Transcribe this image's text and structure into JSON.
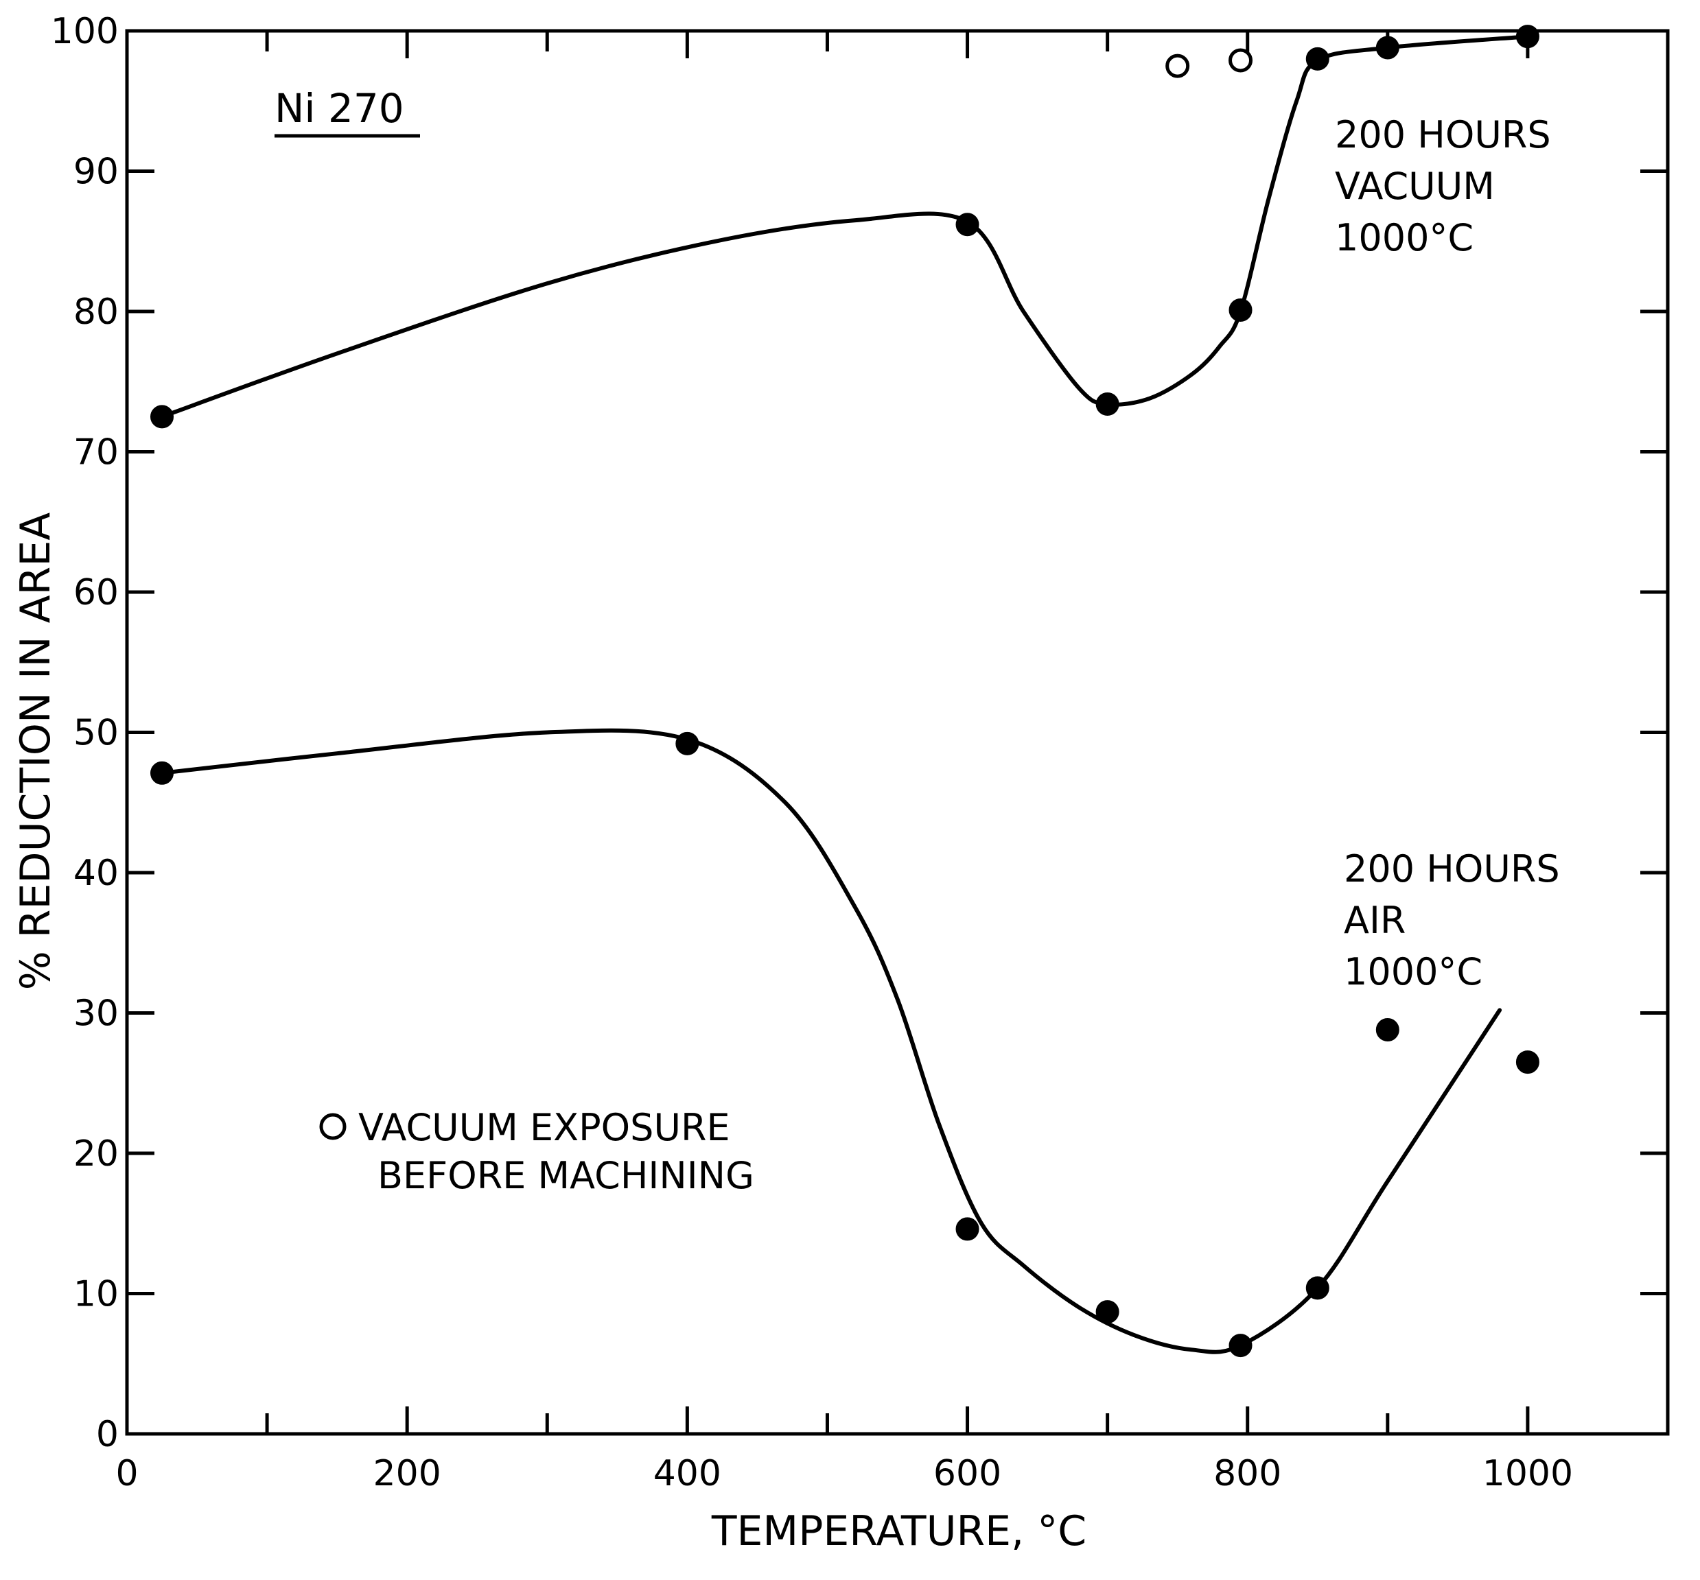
{
  "chart_data": {
    "type": "line",
    "title": "Ni 270",
    "xlabel": "TEMPERATURE, °C",
    "ylabel": "% REDUCTION IN AREA",
    "xlim": [
      0,
      1100
    ],
    "ylim": [
      0,
      100
    ],
    "x_ticks": [
      0,
      200,
      400,
      600,
      800,
      1000
    ],
    "y_ticks": [
      0,
      10,
      20,
      30,
      40,
      50,
      60,
      70,
      80,
      90,
      100
    ],
    "x_minor": [
      100,
      300,
      500,
      700,
      900
    ],
    "grid": false,
    "series": [
      {
        "name": "200 HOURS VACUUM 1000°C",
        "label_lines": [
          "200 HOURS",
          "VACUUM",
          "1000°C"
        ],
        "marker": "filled-circle",
        "points": [
          [
            25,
            72.5
          ],
          [
            600,
            86.2
          ],
          [
            700,
            73.4
          ],
          [
            795,
            80.1
          ],
          [
            850,
            98
          ],
          [
            900,
            98.8
          ],
          [
            1000,
            99.6
          ]
        ],
        "curve": [
          [
            25,
            72.5
          ],
          [
            150,
            77
          ],
          [
            300,
            82
          ],
          [
            420,
            85
          ],
          [
            520,
            86.5
          ],
          [
            600,
            86.4
          ],
          [
            640,
            80
          ],
          [
            680,
            74.5
          ],
          [
            700,
            73.4
          ],
          [
            730,
            73.8
          ],
          [
            760,
            75.5
          ],
          [
            780,
            77.5
          ],
          [
            795,
            80
          ],
          [
            815,
            88
          ],
          [
            835,
            95
          ],
          [
            850,
            97.9
          ],
          [
            900,
            98.8
          ],
          [
            1000,
            99.6
          ]
        ]
      },
      {
        "name": "200 HOURS AIR 1000°C",
        "label_lines": [
          "200 HOURS",
          "AIR",
          "1000°C"
        ],
        "marker": "filled-circle",
        "points": [
          [
            25,
            47.1
          ],
          [
            400,
            49.2
          ],
          [
            600,
            14.6
          ],
          [
            700,
            8.7
          ],
          [
            795,
            6.3
          ],
          [
            850,
            10.4
          ],
          [
            900,
            28.8
          ],
          [
            1000,
            26.5
          ]
        ],
        "curve": [
          [
            25,
            47.1
          ],
          [
            150,
            48.5
          ],
          [
            300,
            50
          ],
          [
            400,
            49.5
          ],
          [
            470,
            45
          ],
          [
            520,
            37.5
          ],
          [
            550,
            31
          ],
          [
            580,
            22
          ],
          [
            610,
            15
          ],
          [
            640,
            12
          ],
          [
            680,
            9
          ],
          [
            720,
            7
          ],
          [
            760,
            6
          ],
          [
            795,
            6.3
          ],
          [
            850,
            10.4
          ],
          [
            900,
            18
          ],
          [
            980,
            30.2
          ]
        ]
      },
      {
        "name": "VACUUM EXPOSURE BEFORE MACHINING",
        "legend_lines": [
          "VACUUM EXPOSURE",
          "BEFORE MACHINING"
        ],
        "marker": "open-circle",
        "points": [
          [
            750,
            97.5
          ],
          [
            795,
            97.9
          ]
        ]
      }
    ]
  }
}
